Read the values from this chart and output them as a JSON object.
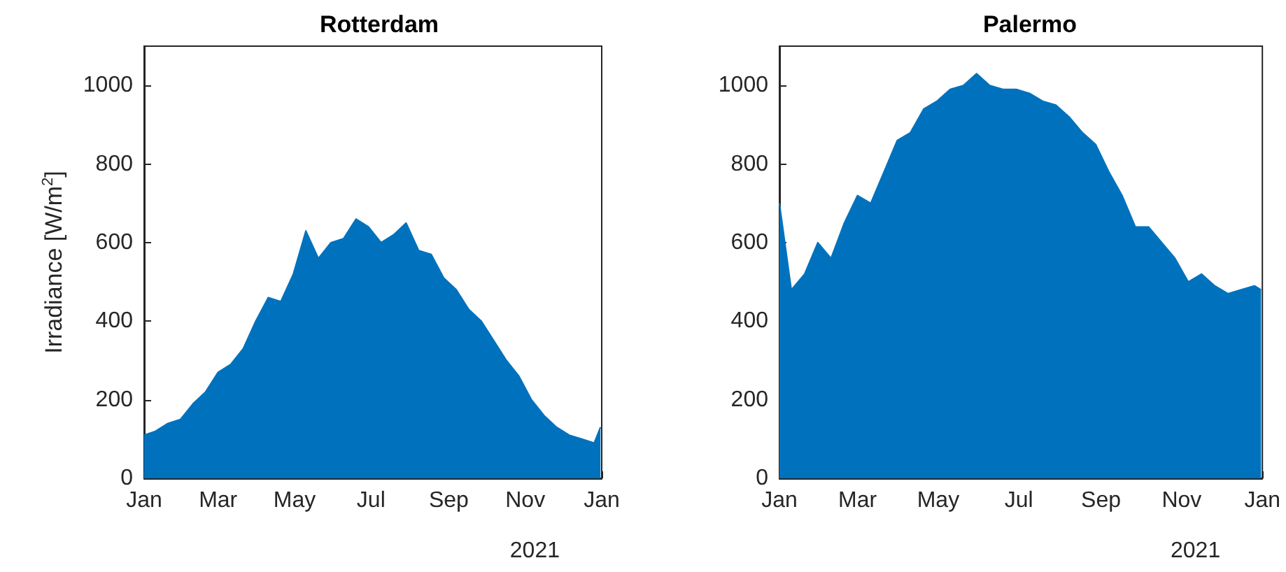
{
  "chart_data": [
    {
      "type": "area",
      "title": "Rotterdam",
      "ylabel": "Irradiance [W/m$^{2}$]",
      "xlabel": "2021",
      "grid": false,
      "x": [
        "2021-01-01",
        "2021-01-10",
        "2021-01-20",
        "2021-01-30",
        "2021-02-09",
        "2021-02-19",
        "2021-03-01",
        "2021-03-11",
        "2021-03-21",
        "2021-03-31",
        "2021-04-10",
        "2021-04-20",
        "2021-04-30",
        "2021-05-10",
        "2021-05-20",
        "2021-05-30",
        "2021-06-09",
        "2021-06-19",
        "2021-06-29",
        "2021-07-09",
        "2021-07-19",
        "2021-07-29",
        "2021-08-08",
        "2021-08-18",
        "2021-08-28",
        "2021-09-07",
        "2021-09-17",
        "2021-09-27",
        "2021-10-07",
        "2021-10-17",
        "2021-10-27",
        "2021-11-06",
        "2021-11-16",
        "2021-11-26",
        "2021-12-06",
        "2021-12-16",
        "2021-12-26",
        "2021-12-31"
      ],
      "series": [
        {
          "color": "#0072bd",
          "values": [
            110,
            120,
            140,
            150,
            190,
            220,
            270,
            290,
            330,
            400,
            460,
            450,
            520,
            630,
            560,
            600,
            610,
            660,
            640,
            600,
            620,
            650,
            580,
            570,
            510,
            480,
            430,
            400,
            350,
            300,
            260,
            200,
            160,
            130,
            110,
            100,
            90,
            130
          ]
        }
      ],
      "xlim": [
        "2021-01-01",
        "2022-01-01"
      ],
      "xticks": [
        {
          "value": "2021-01-01",
          "label": "Jan"
        },
        {
          "value": "2021-03-01",
          "label": "Mar"
        },
        {
          "value": "2021-05-01",
          "label": "May"
        },
        {
          "value": "2021-07-01",
          "label": "Jul"
        },
        {
          "value": "2021-09-01",
          "label": "Sep"
        },
        {
          "value": "2021-11-01",
          "label": "Nov"
        },
        {
          "value": "2022-01-01",
          "label": "Jan"
        }
      ],
      "ylim": [
        0,
        1100
      ],
      "yticks": [
        0,
        200,
        400,
        600,
        800,
        1000
      ]
    },
    {
      "type": "area",
      "title": "Palermo",
      "xlabel": "2021",
      "grid": false,
      "x": [
        "2021-01-01",
        "2021-01-10",
        "2021-01-20",
        "2021-01-30",
        "2021-02-09",
        "2021-02-19",
        "2021-03-01",
        "2021-03-11",
        "2021-03-21",
        "2021-03-31",
        "2021-04-10",
        "2021-04-20",
        "2021-04-30",
        "2021-05-10",
        "2021-05-20",
        "2021-05-30",
        "2021-06-09",
        "2021-06-19",
        "2021-06-29",
        "2021-07-09",
        "2021-07-19",
        "2021-07-29",
        "2021-08-08",
        "2021-08-18",
        "2021-08-28",
        "2021-09-07",
        "2021-09-17",
        "2021-09-27",
        "2021-10-07",
        "2021-10-17",
        "2021-10-27",
        "2021-11-06",
        "2021-11-16",
        "2021-11-26",
        "2021-12-06",
        "2021-12-16",
        "2021-12-26",
        "2021-12-31"
      ],
      "series": [
        {
          "color": "#0072bd",
          "values": [
            700,
            480,
            520,
            600,
            560,
            650,
            720,
            700,
            780,
            860,
            880,
            940,
            960,
            990,
            1000,
            1030,
            1000,
            990,
            990,
            980,
            960,
            950,
            920,
            880,
            850,
            780,
            720,
            640,
            640,
            600,
            560,
            500,
            520,
            490,
            470,
            480,
            490,
            480
          ]
        }
      ],
      "xlim": [
        "2021-01-01",
        "2022-01-01"
      ],
      "xticks": [
        {
          "value": "2021-01-01",
          "label": "Jan"
        },
        {
          "value": "2021-03-01",
          "label": "Mar"
        },
        {
          "value": "2021-05-01",
          "label": "May"
        },
        {
          "value": "2021-07-01",
          "label": "Jul"
        },
        {
          "value": "2021-09-01",
          "label": "Sep"
        },
        {
          "value": "2021-11-01",
          "label": "Nov"
        },
        {
          "value": "2022-01-01",
          "label": "Jan"
        }
      ],
      "ylim": [
        0,
        1100
      ],
      "yticks": [
        0,
        200,
        400,
        600,
        800,
        1000
      ]
    }
  ]
}
